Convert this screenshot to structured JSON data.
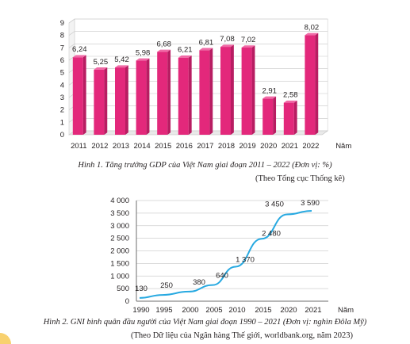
{
  "chart_data": [
    {
      "type": "bar",
      "categories": [
        "2011",
        "2012",
        "2013",
        "2014",
        "2015",
        "2016",
        "2017",
        "2018",
        "2019",
        "2020",
        "2021",
        "2022"
      ],
      "values": [
        6.24,
        5.25,
        5.42,
        5.98,
        6.68,
        6.21,
        6.81,
        7.08,
        7.02,
        2.91,
        2.58,
        8.02
      ],
      "value_labels": [
        "6,24",
        "5,25",
        "5,42",
        "5,98",
        "6,68",
        "6,21",
        "6,81",
        "7,08",
        "7,02",
        "2,91",
        "2,58",
        "8,02"
      ],
      "yticks": [
        "0",
        "1",
        "2",
        "3",
        "4",
        "5",
        "6",
        "7",
        "8",
        "9"
      ],
      "ylim": [
        0,
        9
      ],
      "xlabel": "Năm",
      "grid": true,
      "style": "3d-bar",
      "bar_color": "#e3287b",
      "bar_top_color": "#f06aa6",
      "bar_side_color": "#b81d62",
      "title": "Hình 1. Tăng trưởng GDP của Việt Nam giai đoạn 2011 – 2022 (Đơn vị: %)",
      "source": "(Theo Tổng cục Thống kê)"
    },
    {
      "type": "line",
      "x": [
        "1990",
        "1995",
        "2000",
        "2005",
        "2010",
        "2015",
        "2020",
        "2021"
      ],
      "values": [
        130,
        250,
        380,
        640,
        1370,
        2480,
        3450,
        3590
      ],
      "value_labels": [
        "130",
        "250",
        "380",
        "640",
        "1 370",
        "2 480",
        "3 450",
        "3 590"
      ],
      "yticks": [
        "0",
        "500",
        "1 000",
        "1 500",
        "2 000",
        "2 500",
        "3 000",
        "3 500",
        "4 000"
      ],
      "ylim": [
        0,
        4000
      ],
      "xlabel": "Năm",
      "grid": true,
      "line_color": "#27a9e1",
      "title": "Hình 2. GNI bình quân đầu người của Việt Nam giai đoạn 1990 – 2021 (Đơn vị: nghìn Đôla Mỹ)",
      "source": "(Theo Dữ liệu của Ngân hàng Thế giới, worldbank.org, năm 2023)"
    }
  ]
}
